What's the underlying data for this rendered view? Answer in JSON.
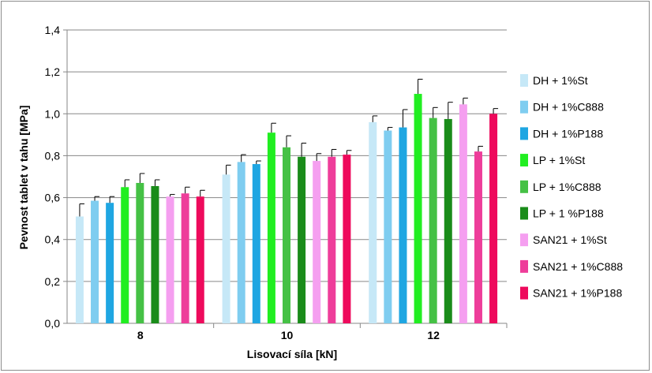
{
  "chart_data": {
    "type": "bar",
    "xlabel": "Lisovací síla [kN]",
    "ylabel": "Pevnost tablet v tahu [MPa]",
    "ylim": [
      0,
      1.4
    ],
    "yticks": [
      "0,0",
      "0,2",
      "0,4",
      "0,6",
      "0,8",
      "1,0",
      "1,2",
      "1,4"
    ],
    "categories": [
      "8",
      "10",
      "12"
    ],
    "grid": true,
    "legend_position": "right",
    "error_bars": true,
    "series": [
      {
        "name": "DH + 1%St",
        "color": "#c6e8f7",
        "values": [
          0.51,
          0.71,
          0.96
        ],
        "errors": [
          0.06,
          0.045,
          0.03
        ]
      },
      {
        "name": "DH + 1%C888",
        "color": "#7fcdf0",
        "values": [
          0.585,
          0.77,
          0.92
        ],
        "errors": [
          0.02,
          0.035,
          0.015
        ]
      },
      {
        "name": "DH + 1%P188",
        "color": "#1fa6e2",
        "values": [
          0.575,
          0.76,
          0.935
        ],
        "errors": [
          0.03,
          0.015,
          0.085
        ]
      },
      {
        "name": "LP + 1%St",
        "color": "#21ee21",
        "values": [
          0.65,
          0.91,
          1.095
        ],
        "errors": [
          0.035,
          0.045,
          0.07
        ]
      },
      {
        "name": "LP + 1%C888",
        "color": "#45c145",
        "values": [
          0.67,
          0.84,
          0.98
        ],
        "errors": [
          0.045,
          0.055,
          0.05
        ]
      },
      {
        "name": "LP + 1 %P188",
        "color": "#1a8c1a",
        "values": [
          0.655,
          0.795,
          0.975
        ],
        "errors": [
          0.03,
          0.065,
          0.08
        ]
      },
      {
        "name": "SAN21 + 1%St",
        "color": "#f59ff0",
        "values": [
          0.605,
          0.775,
          1.045
        ],
        "errors": [
          0.01,
          0.035,
          0.03
        ]
      },
      {
        "name": "SAN21 + 1%C888",
        "color": "#ee3d9a",
        "values": [
          0.62,
          0.795,
          0.82
        ],
        "errors": [
          0.03,
          0.035,
          0.025
        ]
      },
      {
        "name": "SAN21 + 1%P188",
        "color": "#ee0a5c",
        "values": [
          0.605,
          0.805,
          1.0
        ],
        "errors": [
          0.03,
          0.02,
          0.025
        ]
      }
    ]
  }
}
